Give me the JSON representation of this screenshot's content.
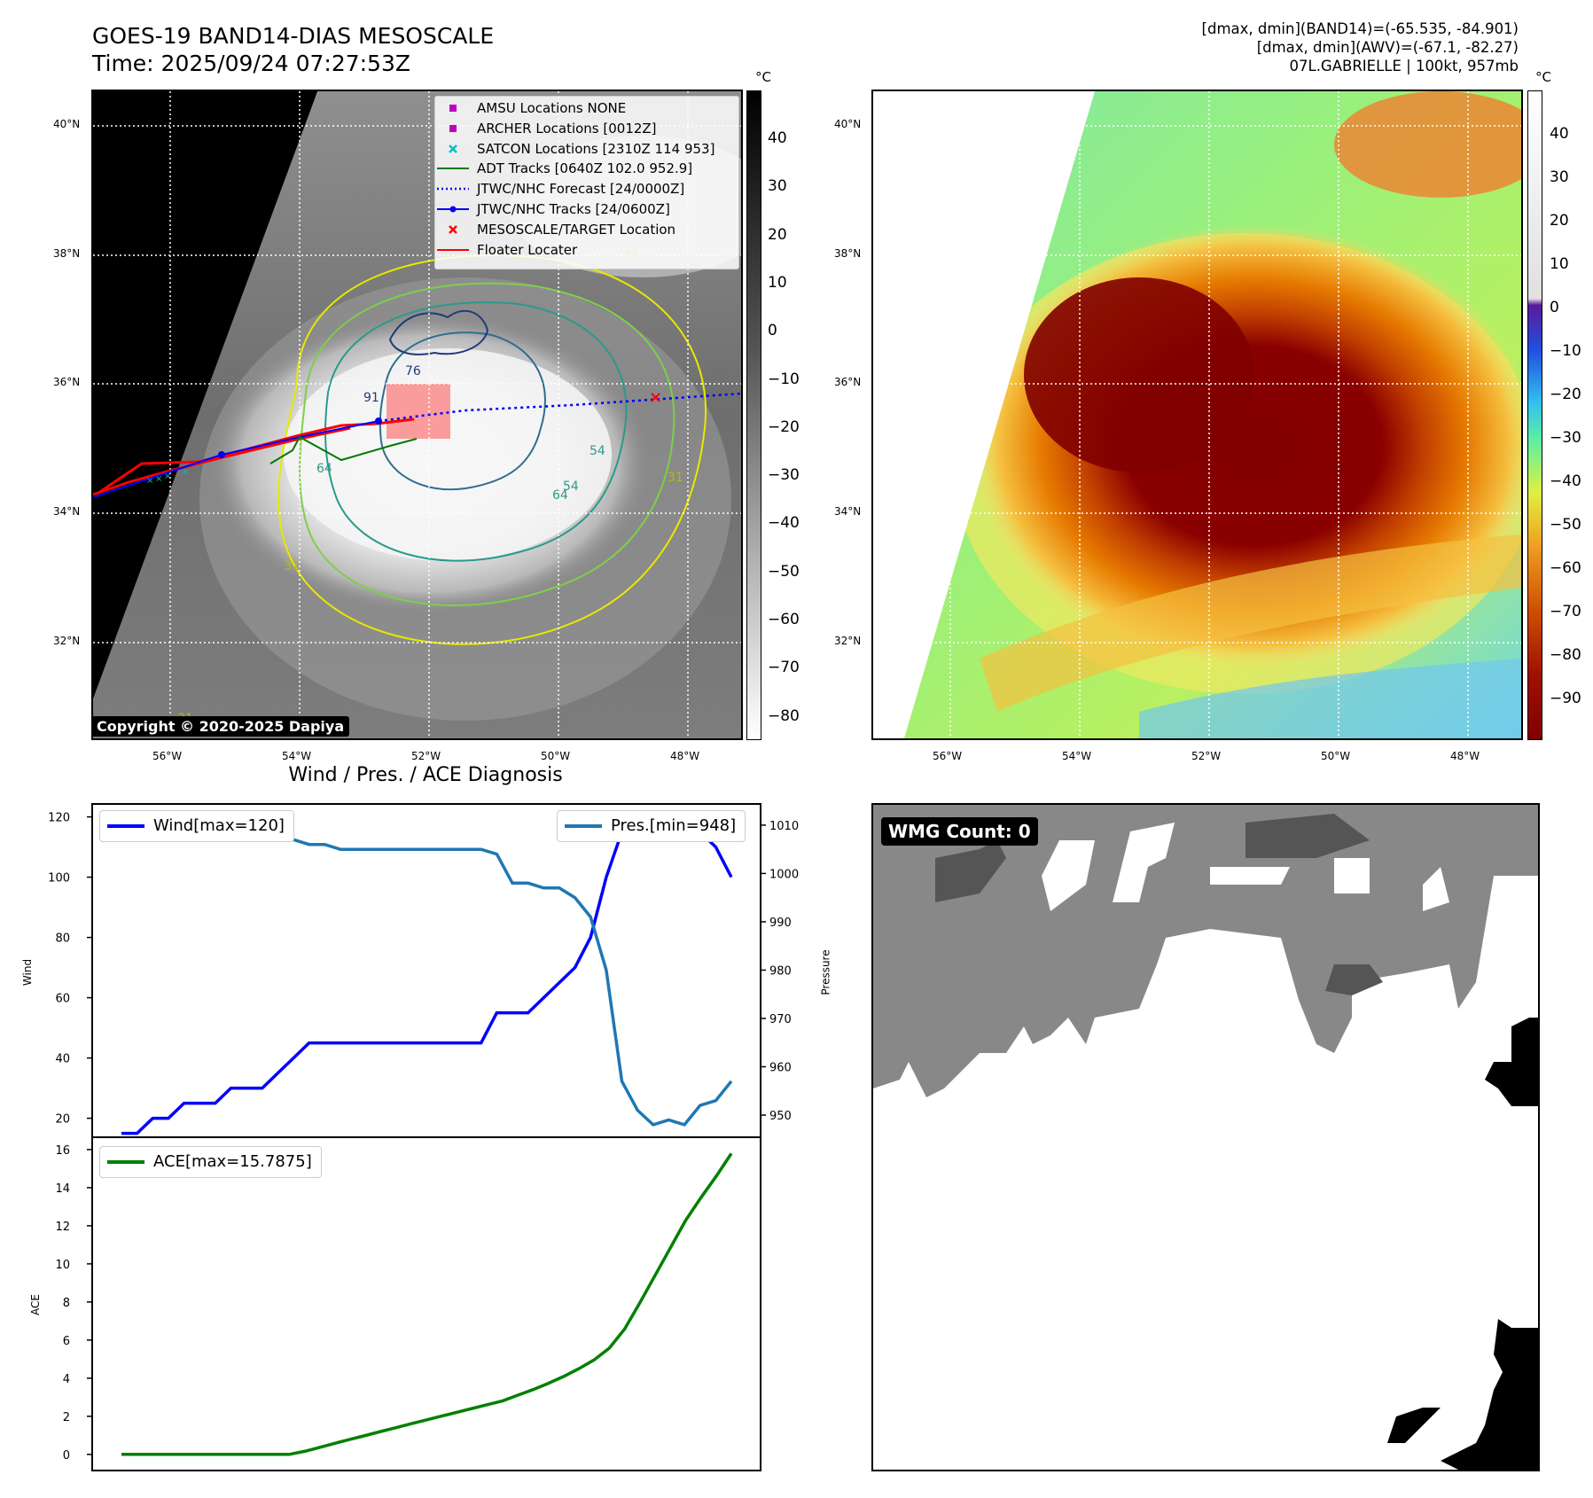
{
  "header": {
    "title_line1": "GOES-19 BAND14-DIAS MESOSCALE",
    "title_line2": "Time: 2025/09/24 07:27:53Z",
    "right_line1": "[dmax, dmin](BAND14)=(-65.535, -84.901)",
    "right_line2": "[dmax, dmin](AWV)=(-67.1, -82.27)",
    "right_line3": "07L.GABRIELLE | 100kt, 957mb"
  },
  "maps": {
    "lat_ticks": [
      "40°N",
      "38°N",
      "36°N",
      "34°N",
      "32°N"
    ],
    "lon_ticks": [
      "56°W",
      "54°W",
      "52°W",
      "50°W",
      "48°W"
    ],
    "unit": "°C",
    "gray_colorbar_ticks": [
      "40",
      "30",
      "20",
      "10",
      "0",
      "−10",
      "−20",
      "−30",
      "−40",
      "−50",
      "−60",
      "−70",
      "−80"
    ],
    "color_colorbar_ticks": [
      "40",
      "30",
      "20",
      "10",
      "0",
      "−10",
      "−20",
      "−30",
      "−40",
      "−50",
      "−60",
      "−70",
      "−80",
      "−90"
    ],
    "copyright": "Copyright © 2020-2025 Dapiya",
    "contour_labels": [
      "31",
      "31",
      "31",
      "54",
      "54",
      "64",
      "64",
      "76",
      "91",
      "31"
    ],
    "legend": [
      {
        "label": "AMSU Locations NONE",
        "color": "#c000c0",
        "symbol": "square"
      },
      {
        "label": "ARCHER Locations [0012Z]",
        "color": "#c000c0",
        "symbol": "square"
      },
      {
        "label": "SATCON Locations [2310Z 114 953]",
        "color": "#00c0c0",
        "symbol": "x"
      },
      {
        "label": "ADT Tracks [0640Z 102.0 952.9]",
        "color": "#007a00",
        "symbol": "line"
      },
      {
        "label": "JTWC/NHC Forecast [24/0000Z]",
        "color": "#0000ff",
        "symbol": "dotted"
      },
      {
        "label": "JTWC/NHC Tracks [24/0600Z]",
        "color": "#0000ff",
        "symbol": "line-dot"
      },
      {
        "label": "MESOSCALE/TARGET Location",
        "color": "#ff0000",
        "symbol": "x"
      },
      {
        "label": "Floater Locater",
        "color": "#ff0000",
        "symbol": "line"
      }
    ]
  },
  "diagnosis": {
    "title": "Wind / Pres. / ACE Diagnosis",
    "wind_legend": "Wind[max=120]",
    "pres_legend": "Pres.[min=948]",
    "ace_legend": "ACE[max=15.7875]",
    "wind_ylabel": "Wind",
    "pres_ylabel": "Pressure",
    "ace_ylabel": "ACE"
  },
  "wmg": {
    "label": "WMG Count: 0"
  },
  "colors": {
    "wind": "#0000ff",
    "pres": "#1f77b4",
    "ace": "#008000"
  },
  "chart_data": [
    {
      "type": "line",
      "title": "Wind / Pres. / ACE Diagnosis",
      "ylabel": "Wind",
      "ylim": [
        14,
        124
      ],
      "yticks": [
        20,
        40,
        60,
        80,
        100,
        120
      ],
      "series": [
        {
          "name": "Wind[max=120]",
          "values": [
            15,
            15,
            20,
            20,
            25,
            25,
            25,
            30,
            30,
            30,
            35,
            40,
            45,
            45,
            45,
            45,
            45,
            45,
            45,
            45,
            45,
            45,
            45,
            45,
            55,
            55,
            55,
            60,
            65,
            70,
            80,
            100,
            115,
            120,
            120,
            120,
            120,
            115,
            110,
            100
          ]
        }
      ]
    },
    {
      "type": "line",
      "ylabel": "Pressure",
      "ylim": [
        945.6,
        1014.2
      ],
      "yticks": [
        950,
        960,
        970,
        980,
        990,
        1000,
        1010
      ],
      "series": [
        {
          "name": "Pres.[min=948]",
          "values": [
            1012,
            1012,
            1011,
            1011,
            1010,
            1009,
            1008,
            1008,
            1008,
            1007,
            1007,
            1007,
            1006,
            1006,
            1005,
            1005,
            1005,
            1005,
            1005,
            1005,
            1005,
            1005,
            1005,
            1005,
            1004,
            998,
            998,
            997,
            997,
            995,
            991,
            980,
            957,
            951,
            948,
            949,
            948,
            952,
            953,
            957
          ]
        }
      ]
    },
    {
      "type": "line",
      "ylabel": "ACE",
      "ylim": [
        -0.8,
        16.6
      ],
      "yticks": [
        0,
        2,
        4,
        6,
        8,
        10,
        12,
        14,
        16
      ],
      "series": [
        {
          "name": "ACE[max=15.7875]",
          "values": [
            0,
            0,
            0,
            0,
            0,
            0,
            0,
            0,
            0,
            0,
            0,
            0,
            0.16,
            0.37,
            0.58,
            0.79,
            0.99,
            1.2,
            1.4,
            1.61,
            1.81,
            2.01,
            2.21,
            2.41,
            2.61,
            2.81,
            3.11,
            3.4,
            3.73,
            4.09,
            4.5,
            4.96,
            5.58,
            6.58,
            7.96,
            9.4,
            10.84,
            12.28,
            13.47,
            14.59,
            15.79
          ]
        }
      ]
    }
  ]
}
